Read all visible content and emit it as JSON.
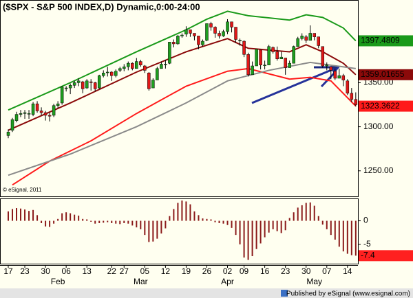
{
  "chart_data": [
    {
      "type": "candlestick",
      "title": "($SPX - S&P 500 INDEX,D) Dynamic,0:00-24:00",
      "watermark": "© eSignal, 2011",
      "categories": [
        "17",
        null,
        null,
        null,
        "23",
        null,
        null,
        null,
        null,
        "30",
        null,
        null,
        null,
        null,
        "06",
        null,
        null,
        null,
        null,
        "13",
        null,
        null,
        null,
        null,
        null,
        "22",
        null,
        null,
        "27",
        null,
        null,
        null,
        null,
        "05",
        null,
        null,
        null,
        null,
        "12",
        null,
        null,
        null,
        null,
        "19",
        null,
        null,
        null,
        null,
        "26",
        null,
        null,
        null,
        null,
        "02",
        null,
        null,
        null,
        "09",
        null,
        null,
        null,
        null,
        "16",
        null,
        null,
        null,
        null,
        "23",
        null,
        null,
        null,
        null,
        "30",
        null,
        null,
        null,
        null,
        "07",
        null,
        null,
        null,
        null,
        "14",
        null,
        null
      ],
      "month_labels": [
        null,
        null,
        null,
        null,
        null,
        null,
        null,
        null,
        null,
        null,
        null,
        null,
        "Feb",
        null,
        null,
        null,
        null,
        null,
        null,
        null,
        null,
        null,
        null,
        null,
        null,
        null,
        null,
        null,
        null,
        null,
        null,
        null,
        "Mar",
        null,
        null,
        null,
        null,
        null,
        null,
        null,
        null,
        null,
        null,
        null,
        null,
        null,
        null,
        null,
        null,
        null,
        null,
        null,
        null,
        "Apr",
        null,
        null,
        null,
        null,
        null,
        null,
        null,
        null,
        null,
        null,
        null,
        null,
        null,
        null,
        null,
        null,
        null,
        null,
        null,
        null,
        "May",
        null,
        null,
        null,
        null,
        null,
        null,
        null,
        null,
        null,
        null
      ],
      "open": [
        1290,
        1296,
        1307,
        1314,
        1315,
        1315,
        1314,
        1326,
        1318,
        1316,
        1313,
        1313,
        1324,
        1327,
        1344,
        1344,
        1347,
        1350,
        1351,
        1344,
        1351,
        1350,
        1344,
        1358,
        1362,
        1362,
        1358,
        1364,
        1366,
        1368,
        1372,
        1366,
        1374,
        1369,
        1361,
        1344,
        1353,
        1366,
        1371,
        1372,
        1396,
        1394,
        1403,
        1405,
        1410,
        1406,
        1403,
        1393,
        1398,
        1417,
        1413,
        1406,
        1403,
        1408,
        1419,
        1413,
        1398,
        1397,
        1382,
        1359,
        1369,
        1387,
        1370,
        1370,
        1390,
        1385,
        1377,
        1378,
        1367,
        1372,
        1391,
        1400,
        1402,
        1398,
        1406,
        1402,
        1391,
        1369,
        1368,
        1363,
        1355,
        1358,
        1352,
        1338,
        1331
      ],
      "high": [
        1297,
        1310,
        1317,
        1319,
        1319,
        1319,
        1328,
        1329,
        1322,
        1318,
        1316,
        1326,
        1329,
        1346,
        1346,
        1349,
        1352,
        1355,
        1352,
        1354,
        1354,
        1351,
        1359,
        1364,
        1368,
        1363,
        1365,
        1368,
        1371,
        1374,
        1373,
        1378,
        1376,
        1370,
        1362,
        1355,
        1368,
        1374,
        1376,
        1396,
        1399,
        1404,
        1406,
        1414,
        1410,
        1406,
        1403,
        1399,
        1417,
        1419,
        1414,
        1409,
        1410,
        1422,
        1419,
        1413,
        1400,
        1398,
        1384,
        1374,
        1388,
        1387,
        1375,
        1393,
        1391,
        1391,
        1385,
        1378,
        1375,
        1392,
        1402,
        1406,
        1404,
        1415,
        1406,
        1402,
        1391,
        1373,
        1368,
        1366,
        1366,
        1360,
        1354,
        1344,
        1339
      ],
      "low": [
        1287,
        1294,
        1305,
        1311,
        1309,
        1309,
        1312,
        1316,
        1313,
        1307,
        1306,
        1311,
        1321,
        1325,
        1340,
        1337,
        1344,
        1346,
        1338,
        1343,
        1341,
        1340,
        1343,
        1356,
        1357,
        1352,
        1356,
        1362,
        1363,
        1364,
        1364,
        1366,
        1368,
        1361,
        1341,
        1344,
        1353,
        1366,
        1366,
        1371,
        1390,
        1393,
        1401,
        1402,
        1402,
        1398,
        1388,
        1391,
        1397,
        1409,
        1401,
        1400,
        1402,
        1405,
        1407,
        1395,
        1392,
        1379,
        1357,
        1359,
        1369,
        1365,
        1365,
        1370,
        1383,
        1375,
        1377,
        1359,
        1367,
        1372,
        1391,
        1398,
        1395,
        1398,
        1398,
        1389,
        1367,
        1364,
        1354,
        1353,
        1355,
        1346,
        1336,
        1328,
        1323
      ],
      "close": [
        1294,
        1308,
        1314,
        1315,
        1316,
        1315,
        1326,
        1318,
        1316,
        1313,
        1312,
        1324,
        1326,
        1345,
        1344,
        1347,
        1350,
        1352,
        1343,
        1352,
        1350,
        1343,
        1358,
        1361,
        1362,
        1358,
        1363,
        1366,
        1368,
        1372,
        1366,
        1374,
        1370,
        1364,
        1343,
        1353,
        1366,
        1371,
        1371,
        1396,
        1394,
        1403,
        1404,
        1410,
        1406,
        1403,
        1393,
        1397,
        1417,
        1413,
        1406,
        1403,
        1408,
        1419,
        1413,
        1399,
        1398,
        1382,
        1359,
        1369,
        1388,
        1370,
        1370,
        1391,
        1385,
        1377,
        1379,
        1367,
        1372,
        1391,
        1400,
        1403,
        1398,
        1406,
        1402,
        1392,
        1369,
        1370,
        1364,
        1355,
        1358,
        1353,
        1338,
        1331,
        1325
      ],
      "up_color": "#1e9e1e",
      "down_color": "#e01818",
      "series": [
        {
          "color": "#1a9a1a",
          "x": [
            0,
            15,
            31,
            43,
            48,
            53,
            58,
            68,
            72,
            76,
            81,
            84
          ],
          "values": [
            1319,
            1350,
            1385,
            1410,
            1422,
            1431,
            1426,
            1421,
            1427,
            1424,
            1412,
            1397.4809
          ],
          "last_label": true,
          "box_text": "#000000"
        },
        {
          "color": "#8b0a0a",
          "x": [
            0,
            15,
            31,
            43,
            53,
            58,
            68,
            72,
            76,
            81,
            84
          ],
          "values": [
            1296,
            1327,
            1362,
            1385,
            1400,
            1389,
            1385,
            1393,
            1385,
            1372,
            1359.01655
          ],
          "last_label": true,
          "box_text": "#ffffff"
        },
        {
          "color": "#ff1a1a",
          "x": [
            1,
            10,
            20,
            31,
            43,
            53,
            58,
            68,
            73,
            78,
            84
          ],
          "values": [
            1234,
            1261,
            1284,
            1315,
            1346,
            1363,
            1366,
            1354,
            1356,
            1352,
            1323.3622
          ],
          "last_label": true,
          "box_text": "#ffffff"
        },
        {
          "color": "#8a8a8a",
          "x": [
            0,
            15,
            31,
            43,
            53,
            63,
            73,
            84
          ],
          "values": [
            1245,
            1269,
            1300,
            1327,
            1352,
            1364,
            1373,
            1366
          ],
          "last_label": false
        }
      ],
      "ylim": [
        1221,
        1443
      ],
      "yticks": [
        {
          "value": 1250,
          "label": "1250.00"
        },
        {
          "value": 1300,
          "label": "1300.00"
        },
        {
          "value": 1350,
          "label": "1350.00"
        }
      ]
    },
    {
      "type": "bar",
      "values": [
        2.0,
        2.5,
        2.7,
        2.6,
        2.4,
        2.1,
        2.3,
        1.2,
        -0.5,
        -1.2,
        -1.3,
        -0.6,
        0.4,
        1.6,
        1.8,
        1.6,
        1.3,
        1.1,
        0.4,
        0.3,
        -0.2,
        -0.6,
        -0.5,
        -0.4,
        -0.3,
        -0.5,
        -0.6,
        -0.7,
        -0.5,
        -0.6,
        -1.0,
        -1.4,
        -1.8,
        -3.0,
        -4.5,
        -4.4,
        -3.8,
        -2.7,
        -1.6,
        1.0,
        2.5,
        3.8,
        4.3,
        4.1,
        3.5,
        2.0,
        1.2,
        0.5,
        0.4,
        0.3,
        -0.3,
        -0.5,
        -0.6,
        -0.9,
        -1.5,
        -3.0,
        -5.0,
        -7.8,
        -8.3,
        -7.5,
        -6.0,
        -4.8,
        -3.5,
        -2.5,
        -1.8,
        -2.2,
        -2.6,
        -2.0,
        0.6,
        1.8,
        2.8,
        3.3,
        3.8,
        3.9,
        3.2,
        1.0,
        -0.8,
        -1.8,
        -3.0,
        -4.0,
        -5.5,
        -6.5,
        -7.0,
        -7.3,
        -7.4
      ],
      "color": "#8b1a1a",
      "last_label": true,
      "box_color": "#ff2020",
      "box_text": "#000000",
      "ylim": [
        -9.1,
        4.6
      ],
      "yticks": [
        0,
        -5
      ]
    }
  ],
  "footer": "Published by eSignal (www.esignal.com)"
}
